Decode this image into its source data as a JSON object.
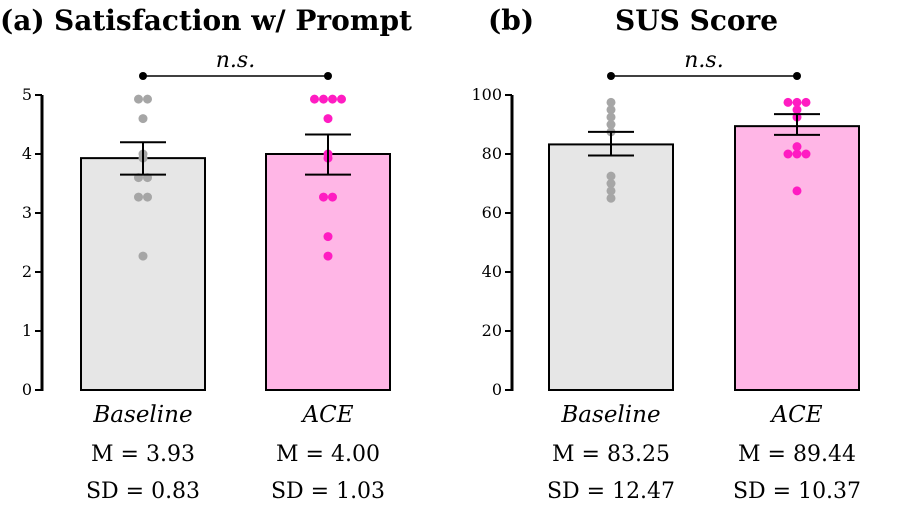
{
  "colors": {
    "baseline_bar": "#e6e6e6",
    "ace_bar": "#ffb6e6",
    "baseline_points": "#a6a6a6",
    "ace_points": "#ff1cc2",
    "axis": "#000000"
  },
  "chart_data": [
    {
      "type": "bar",
      "panel_label": "(a)",
      "title": "Satisfaction w/ Prompt",
      "significance": "n.s.",
      "ylim": [
        0,
        5
      ],
      "yticks": [
        "0",
        "1",
        "2",
        "3",
        "4",
        "5"
      ],
      "grid": false,
      "categories": [
        "Baseline",
        "ACE"
      ],
      "values": [
        3.93,
        4.0
      ],
      "error": [
        [
          3.65,
          4.2
        ],
        [
          3.65,
          4.33
        ]
      ],
      "stats": [
        {
          "mean": "M = 3.93",
          "sd": "SD = 0.83"
        },
        {
          "mean": "M = 4.00",
          "sd": "SD = 1.03"
        }
      ],
      "points": [
        [
          4.93,
          4.93,
          4.6,
          4.0,
          3.93,
          3.6,
          3.6,
          3.27,
          3.27,
          2.27
        ],
        [
          4.93,
          4.93,
          4.93,
          4.93,
          4.6,
          4.0,
          3.93,
          3.27,
          3.27,
          2.6,
          2.27
        ]
      ]
    },
    {
      "type": "bar",
      "panel_label": "(b)",
      "title": "SUS Score",
      "significance": "n.s.",
      "ylim": [
        0,
        100
      ],
      "yticks": [
        "0",
        "20",
        "40",
        "60",
        "80",
        "100"
      ],
      "grid": false,
      "categories": [
        "Baseline",
        "ACE"
      ],
      "values": [
        83.25,
        89.44
      ],
      "error": [
        [
          79.5,
          87.5
        ],
        [
          86.5,
          93.5
        ]
      ],
      "stats": [
        {
          "mean": "M = 83.25",
          "sd": "SD = 12.47"
        },
        {
          "mean": "M = 89.44",
          "sd": "SD = 10.37"
        }
      ],
      "points": [
        [
          97.5,
          95,
          92.5,
          90,
          87.5,
          72.5,
          70,
          67.5,
          65
        ],
        [
          97.5,
          97.5,
          97.5,
          95,
          92.5,
          82.5,
          80,
          80,
          80,
          67.5
        ]
      ]
    }
  ]
}
